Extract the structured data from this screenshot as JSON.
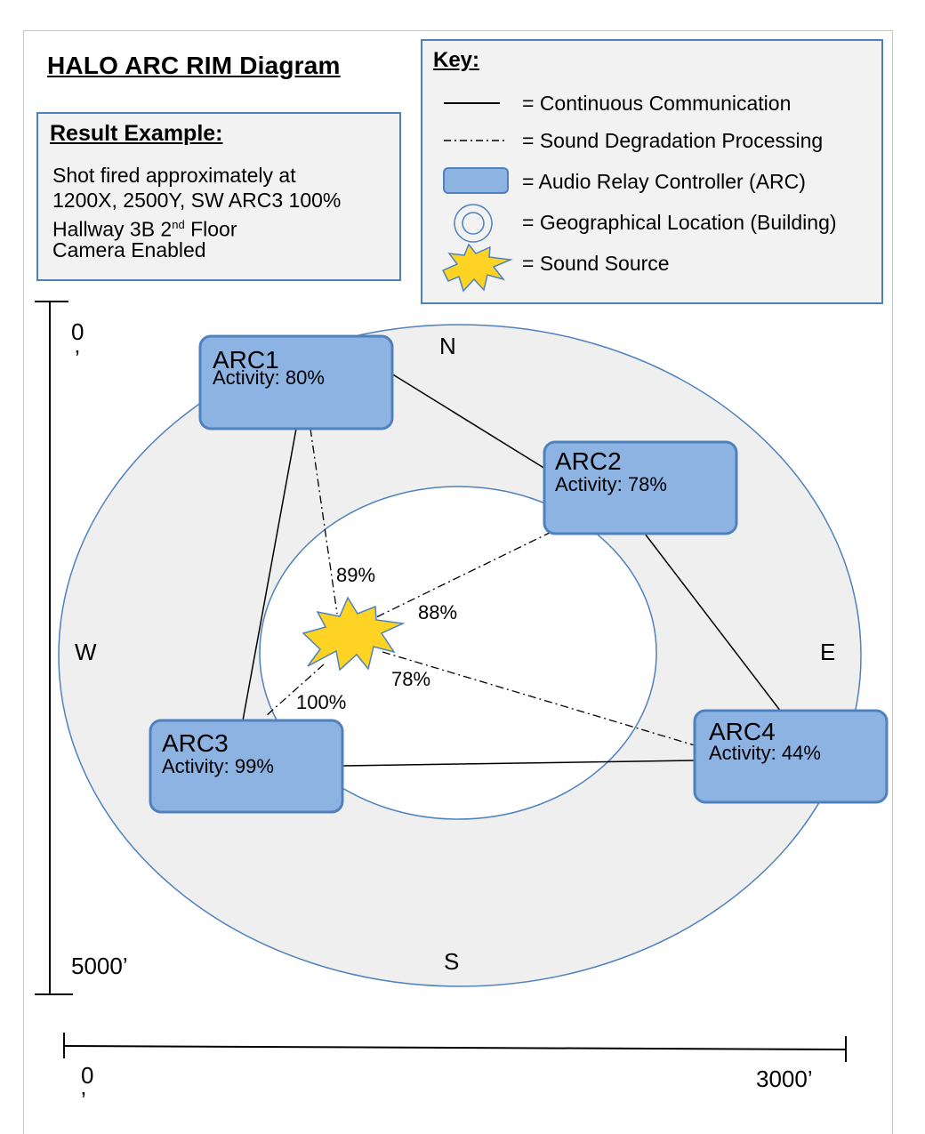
{
  "title": "HALO ARC RIM Diagram",
  "result": {
    "heading": "Result  Example:",
    "line1": "Shot fired approximately at",
    "line2": "1200X, 2500Y, SW ARC3 100%",
    "line3_pre": "Hallway 3B 2",
    "line3_sup": "nd",
    "line3_post": " Floor",
    "line4": "Camera Enabled"
  },
  "key": {
    "heading": "Key:",
    "continuous": "= Continuous Communication",
    "degradation": "= Sound Degradation Processing",
    "arc": "= Audio Relay Controller (ARC)",
    "location": "= Geographical Location (Building)",
    "source": "= Sound Source"
  },
  "compass": {
    "n": "N",
    "s": "S",
    "e": "E",
    "w": "W"
  },
  "arcs": [
    {
      "name": "ARC1",
      "activity": "Activity: 80%"
    },
    {
      "name": "ARC2",
      "activity": "Activity: 78%"
    },
    {
      "name": "ARC3",
      "activity": "Activity: 99%"
    },
    {
      "name": "ARC4",
      "activity": "Activity: 44%"
    }
  ],
  "percents": {
    "arc1": "89%",
    "arc2": "88%",
    "arc4": "78%",
    "arc3": "100%"
  },
  "scale": {
    "v_top": "0",
    "v_top_mark": "’",
    "v_bottom": "5000’",
    "h_left": "0",
    "h_left_mark": "’",
    "h_right": "3000’"
  },
  "colors": {
    "arc_fill": "#8db3e2",
    "arc_border": "#4f81bd",
    "ring": "#4f81bd",
    "ring_fill": "#efefef",
    "burst": "#ffd324"
  }
}
